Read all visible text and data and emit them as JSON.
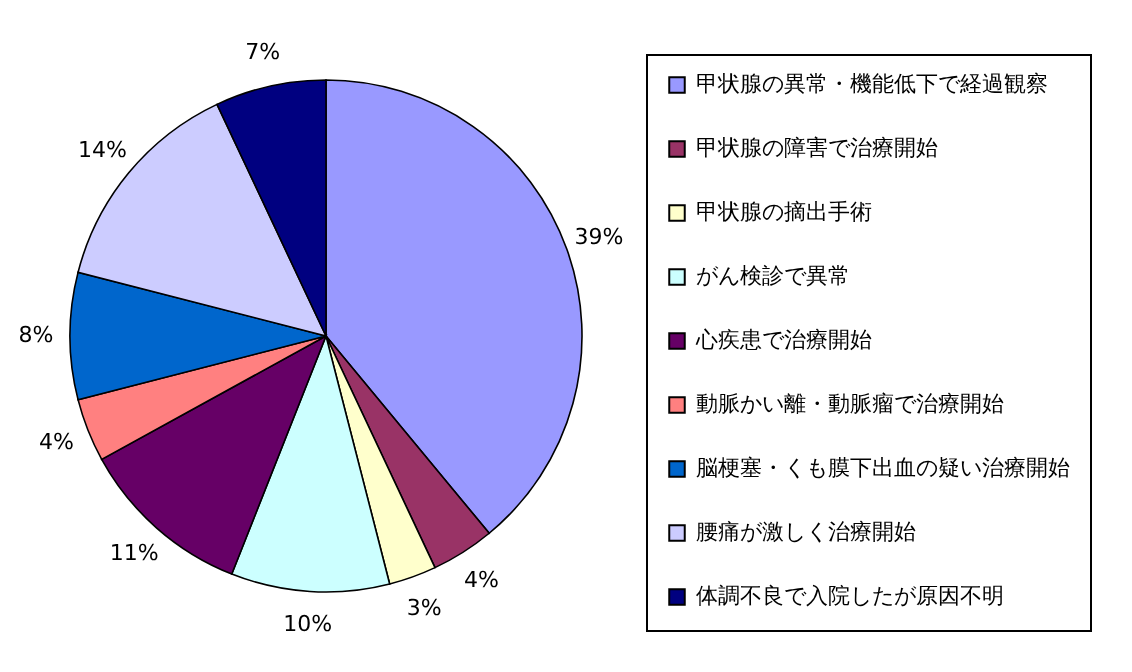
{
  "chart_data": {
    "type": "pie",
    "categories": [
      "甲状腺の異常・機能低下で経過観察",
      "甲状腺の障害で治療開始",
      "甲状腺の摘出手術",
      "がん検診で異常",
      "心疾患で治療開始",
      "動脈かい離・動脈瘤で治療開始",
      "脳梗塞・くも膜下出血の疑い治療開始",
      "腰痛が激しく治療開始",
      "体調不良で入院したが原因不明"
    ],
    "values": [
      39,
      4,
      3,
      10,
      11,
      4,
      8,
      14,
      7
    ],
    "colors": [
      "#9999ff",
      "#993366",
      "#ffffcc",
      "#ccffff",
      "#660066",
      "#ff8080",
      "#0066cc",
      "#ccccff",
      "#000080"
    ],
    "value_labels": [
      "39%",
      "4%",
      "3%",
      "10%",
      "11%",
      "4%",
      "8%",
      "14%",
      "7%"
    ],
    "legend": "right"
  }
}
